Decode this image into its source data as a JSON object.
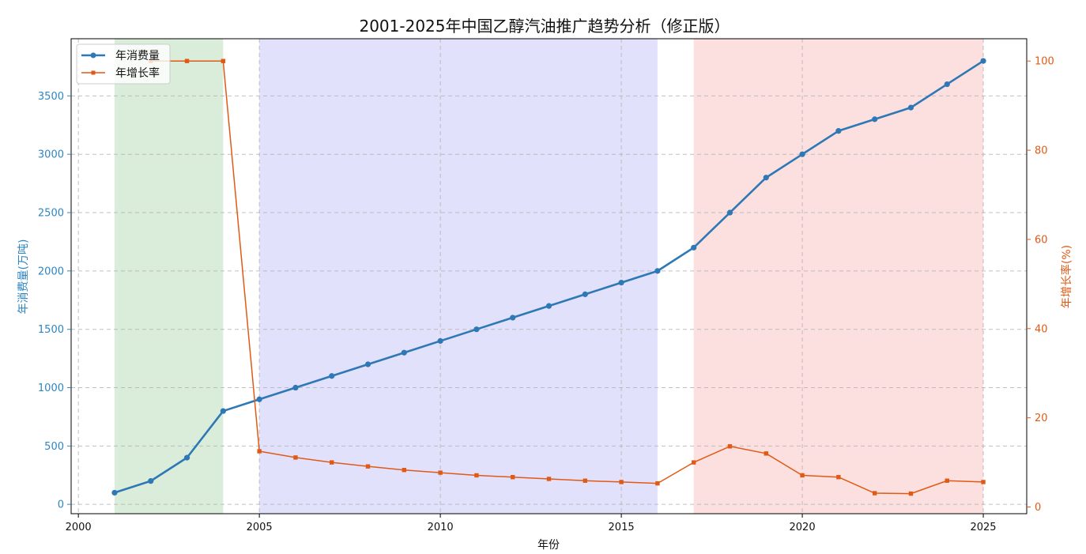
{
  "chart_data": {
    "type": "line",
    "title": "2001-2025年中国乙醇汽油推广趋势分析（修正版）",
    "xlabel": "年份",
    "ylabel_left": "年消费量(万吨)",
    "ylabel_right": "年增长率(%)",
    "x": [
      2001,
      2002,
      2003,
      2004,
      2005,
      2006,
      2007,
      2008,
      2009,
      2010,
      2011,
      2012,
      2013,
      2014,
      2015,
      2016,
      2017,
      2018,
      2019,
      2020,
      2021,
      2022,
      2023,
      2024,
      2025
    ],
    "xlim": [
      1999.8,
      2026.2
    ],
    "x_ticks": [
      2000,
      2005,
      2010,
      2015,
      2020,
      2025
    ],
    "ylim_left": [
      -80,
      3990
    ],
    "y_ticks_left": [
      0,
      500,
      1000,
      1500,
      2000,
      2500,
      3000,
      3500
    ],
    "ylim_right": [
      -1.5,
      105
    ],
    "y_ticks_right": [
      0,
      20,
      40,
      60,
      80,
      100
    ],
    "grid": true,
    "legend_position": "upper-left",
    "shaded_periods": [
      {
        "start": 2001,
        "end": 2004,
        "color": "#d4ead4"
      },
      {
        "start": 2005,
        "end": 2016,
        "color": "#dcdcfc"
      },
      {
        "start": 2017,
        "end": 2025,
        "color": "#fcdada"
      }
    ],
    "series": [
      {
        "name": "年消费量",
        "axis": "left",
        "color": "#2e78b5",
        "marker": "circle",
        "x": [
          2001,
          2002,
          2003,
          2004,
          2005,
          2006,
          2007,
          2008,
          2009,
          2010,
          2011,
          2012,
          2013,
          2014,
          2015,
          2016,
          2017,
          2018,
          2019,
          2020,
          2021,
          2022,
          2023,
          2024,
          2025
        ],
        "values": [
          100,
          200,
          400,
          800,
          900,
          1000,
          1100,
          1200,
          1300,
          1400,
          1500,
          1600,
          1700,
          1800,
          1900,
          2000,
          2200,
          2500,
          2800,
          3000,
          3200,
          3300,
          3400,
          3600,
          3800
        ]
      },
      {
        "name": "年增长率",
        "axis": "right",
        "color": "#e05a15",
        "marker": "square",
        "x": [
          2002,
          2003,
          2004,
          2005,
          2006,
          2007,
          2008,
          2009,
          2010,
          2011,
          2012,
          2013,
          2014,
          2015,
          2016,
          2017,
          2018,
          2019,
          2020,
          2021,
          2022,
          2023,
          2024,
          2025
        ],
        "values": [
          100,
          100,
          100,
          12.5,
          11.1,
          10.0,
          9.1,
          8.3,
          7.7,
          7.1,
          6.7,
          6.3,
          5.9,
          5.6,
          5.3,
          10.0,
          13.6,
          12.0,
          7.1,
          6.7,
          3.1,
          3.0,
          5.9,
          5.6
        ]
      }
    ],
    "colors": {
      "left_axis": "#2e86c1",
      "right_axis": "#e05a15"
    }
  }
}
